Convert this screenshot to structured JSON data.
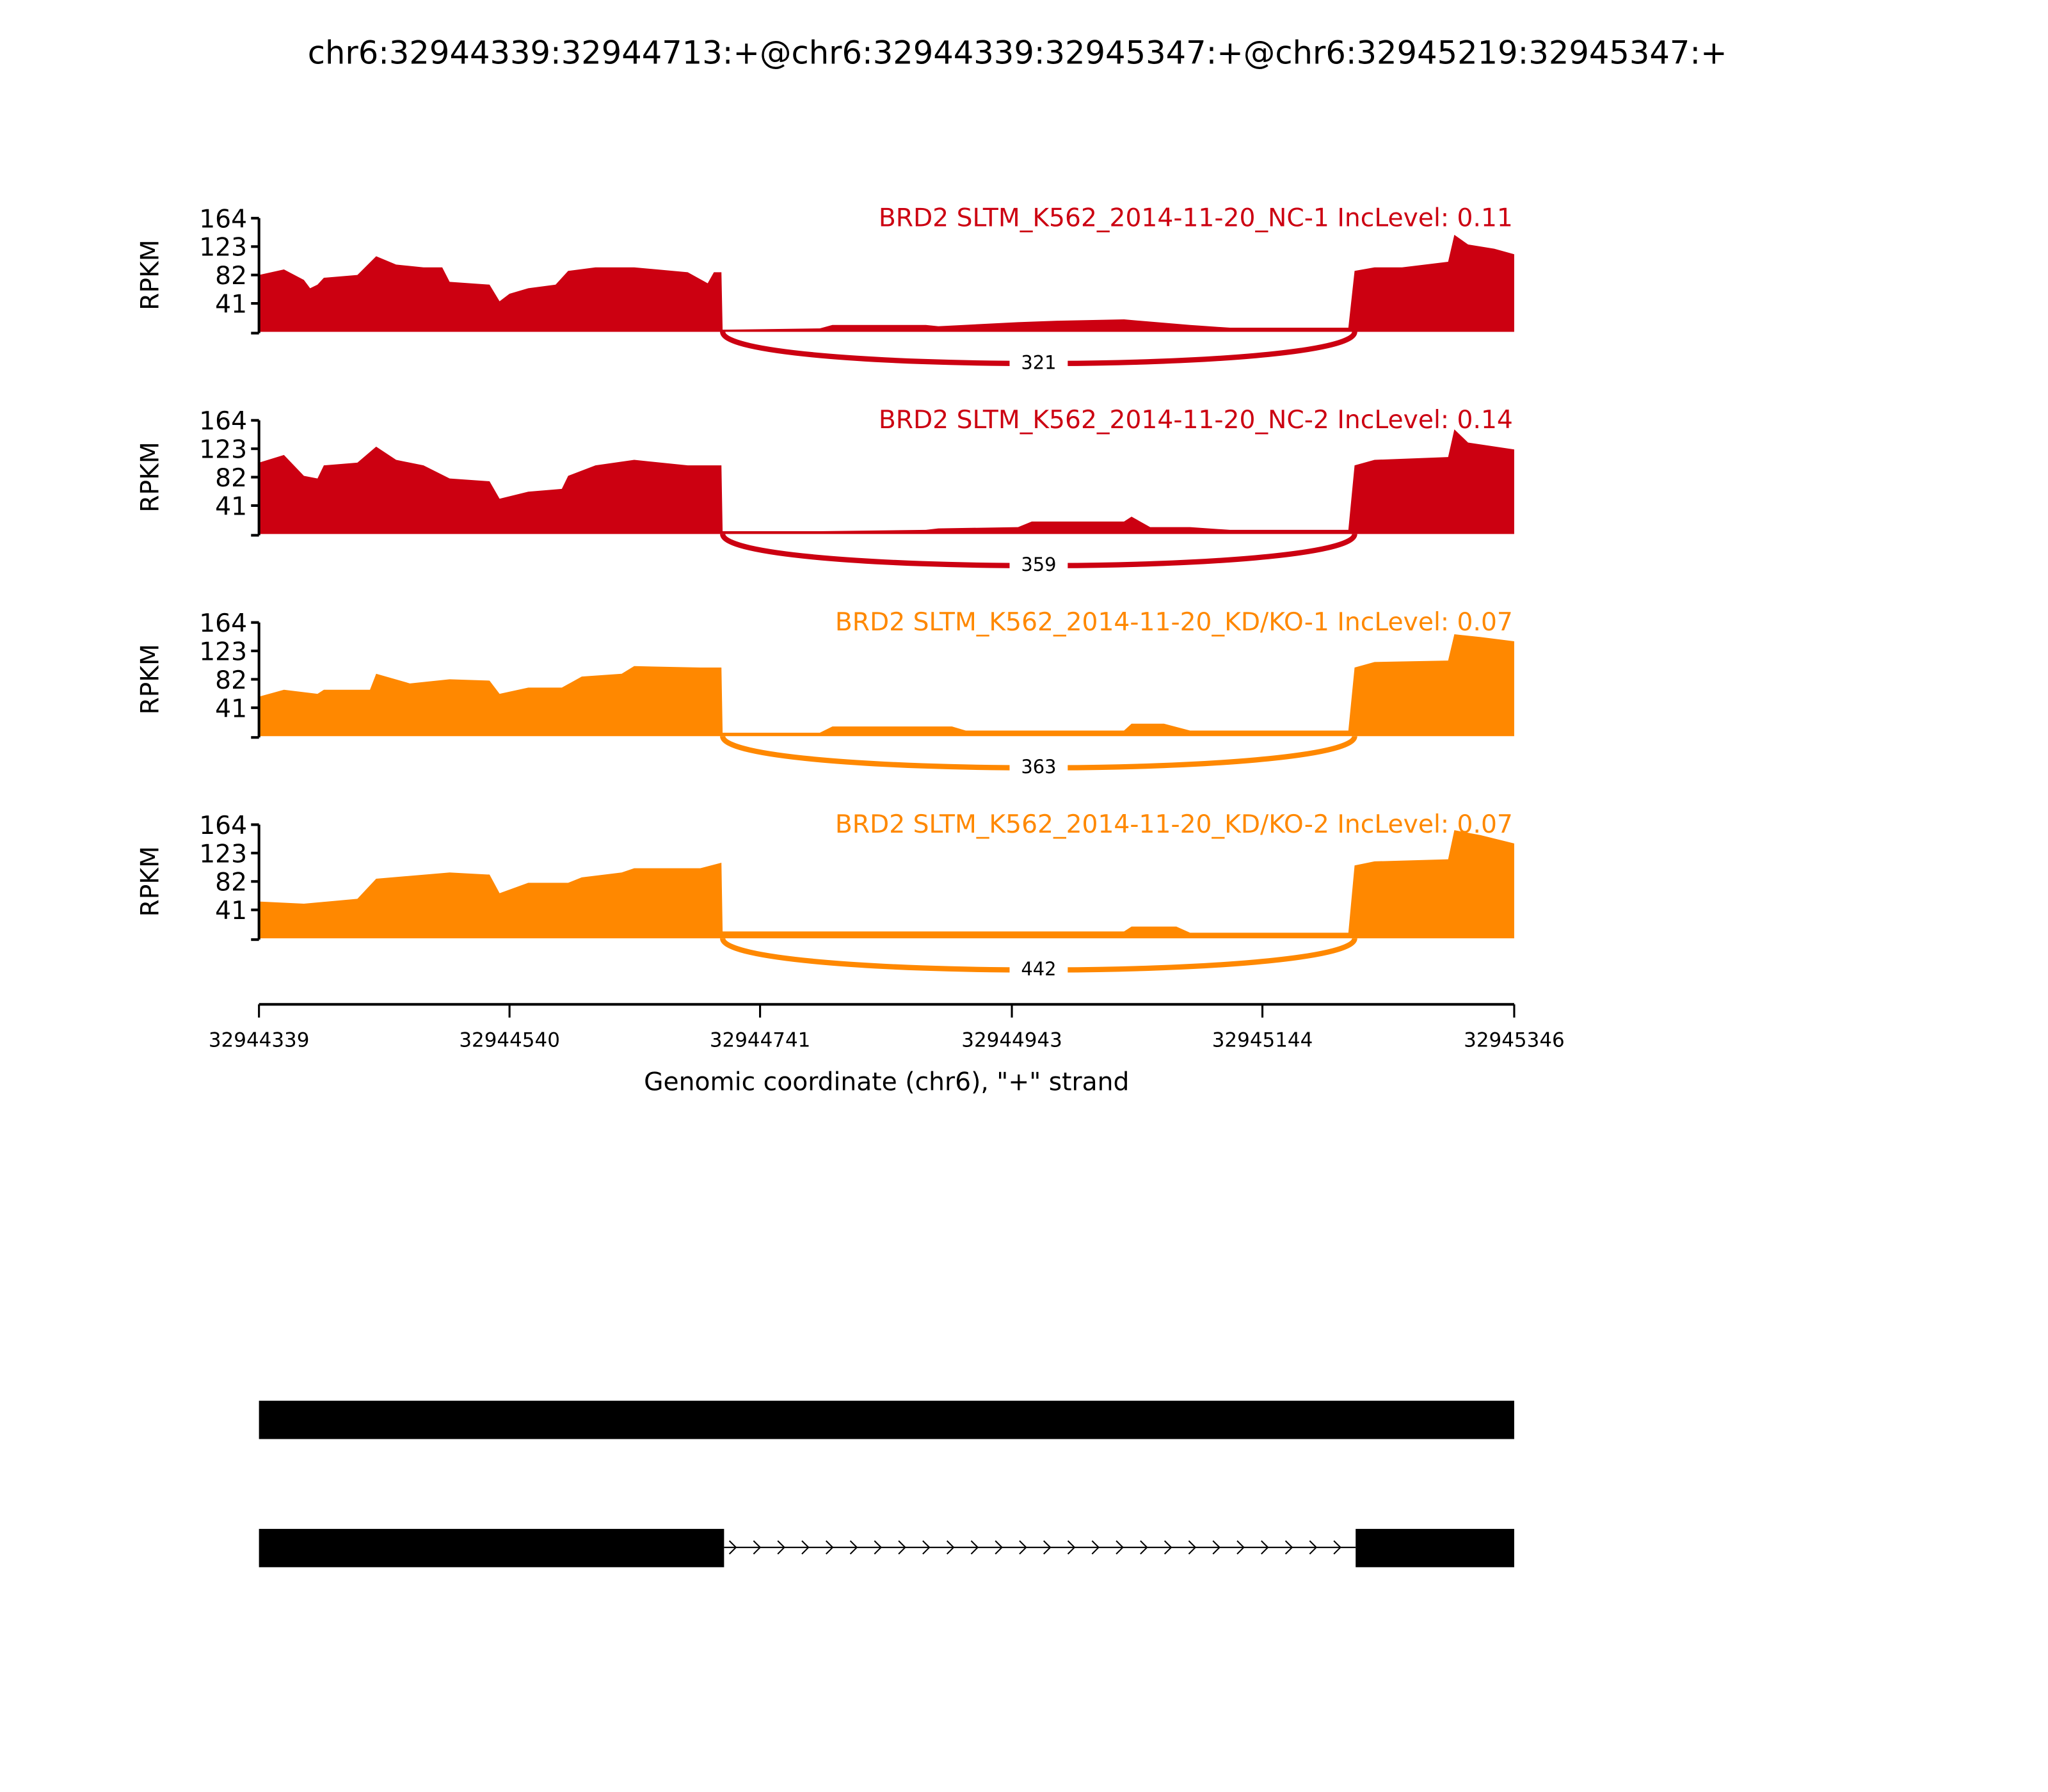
{
  "chart_data": {
    "type": "area",
    "title": "chr6:32944339:32944713:+@chr6:32944339:32945347:+@chr6:32945219:32945347:+",
    "xlabel": "Genomic coordinate (chr6), \"+\" strand",
    "ylabel": "RPKM",
    "x_start": 32944339,
    "x_end": 32945346,
    "xlim": [
      32944339,
      32945346
    ],
    "x_ticks": [
      "32944339",
      "32944540",
      "32944741",
      "32944943",
      "32945144",
      "32945346"
    ],
    "y_ticks": [
      "41",
      "82",
      "123",
      "164"
    ],
    "ylim": [
      0,
      164
    ],
    "x_units": "bp offset from x_start",
    "exon1_end_offset": 372,
    "exon2_start_offset": 879,
    "series": [
      {
        "name": "BRD2 SLTM_K562_2014-11-20_NC-1 IncLevel: 0.11",
        "color": "#CC0011",
        "junction_count": "321",
        "points": [
          [
            0,
            82
          ],
          [
            20,
            90
          ],
          [
            36,
            75
          ],
          [
            41,
            63
          ],
          [
            47,
            68
          ],
          [
            52,
            78
          ],
          [
            79,
            82
          ],
          [
            94,
            109
          ],
          [
            110,
            97
          ],
          [
            132,
            93
          ],
          [
            147,
            93
          ],
          [
            153,
            72
          ],
          [
            185,
            68
          ],
          [
            193,
            44
          ],
          [
            201,
            55
          ],
          [
            216,
            63
          ],
          [
            238,
            68
          ],
          [
            248,
            88
          ],
          [
            270,
            93
          ],
          [
            301,
            93
          ],
          [
            344,
            86
          ],
          [
            360,
            70
          ],
          [
            365,
            86
          ],
          [
            371,
            86
          ],
          [
            372,
            3
          ],
          [
            450,
            5
          ],
          [
            460,
            10
          ],
          [
            535,
            10
          ],
          [
            545,
            8
          ],
          [
            609,
            14
          ],
          [
            641,
            16
          ],
          [
            694,
            18
          ],
          [
            747,
            10
          ],
          [
            779,
            6
          ],
          [
            874,
            6
          ],
          [
            879,
            88
          ],
          [
            895,
            93
          ],
          [
            917,
            93
          ],
          [
            954,
            101
          ],
          [
            959,
            140
          ],
          [
            970,
            126
          ],
          [
            991,
            120
          ],
          [
            1007,
            112
          ]
        ]
      },
      {
        "name": "BRD2 SLTM_K562_2014-11-20_NC-2 IncLevel: 0.14",
        "color": "#CC0011",
        "junction_count": "359",
        "points": [
          [
            0,
            103
          ],
          [
            20,
            114
          ],
          [
            36,
            84
          ],
          [
            47,
            80
          ],
          [
            52,
            99
          ],
          [
            79,
            103
          ],
          [
            94,
            126
          ],
          [
            110,
            107
          ],
          [
            132,
            99
          ],
          [
            153,
            80
          ],
          [
            185,
            76
          ],
          [
            193,
            51
          ],
          [
            216,
            61
          ],
          [
            243,
            65
          ],
          [
            248,
            84
          ],
          [
            270,
            99
          ],
          [
            301,
            107
          ],
          [
            344,
            99
          ],
          [
            365,
            99
          ],
          [
            371,
            99
          ],
          [
            372,
            4
          ],
          [
            450,
            4
          ],
          [
            535,
            6
          ],
          [
            545,
            8
          ],
          [
            609,
            10
          ],
          [
            620,
            18
          ],
          [
            694,
            18
          ],
          [
            700,
            25
          ],
          [
            715,
            10
          ],
          [
            747,
            10
          ],
          [
            779,
            6
          ],
          [
            874,
            6
          ],
          [
            879,
            99
          ],
          [
            895,
            107
          ],
          [
            954,
            111
          ],
          [
            959,
            151
          ],
          [
            970,
            132
          ],
          [
            1007,
            122
          ]
        ]
      },
      {
        "name": "BRD2 SLTM_K562_2014-11-20_KD/KO-1 IncLevel: 0.07",
        "color": "#FF8800",
        "junction_count": "363",
        "points": [
          [
            0,
            57
          ],
          [
            20,
            67
          ],
          [
            47,
            61
          ],
          [
            52,
            67
          ],
          [
            89,
            67
          ],
          [
            94,
            90
          ],
          [
            121,
            76
          ],
          [
            153,
            82
          ],
          [
            185,
            80
          ],
          [
            193,
            61
          ],
          [
            216,
            70
          ],
          [
            243,
            70
          ],
          [
            259,
            86
          ],
          [
            291,
            90
          ],
          [
            301,
            101
          ],
          [
            354,
            99
          ],
          [
            365,
            99
          ],
          [
            371,
            99
          ],
          [
            372,
            5
          ],
          [
            450,
            5
          ],
          [
            460,
            14
          ],
          [
            556,
            14
          ],
          [
            567,
            8
          ],
          [
            694,
            8
          ],
          [
            700,
            18
          ],
          [
            726,
            18
          ],
          [
            747,
            8
          ],
          [
            874,
            8
          ],
          [
            879,
            99
          ],
          [
            895,
            107
          ],
          [
            954,
            109
          ],
          [
            959,
            147
          ],
          [
            980,
            143
          ],
          [
            1007,
            137
          ]
        ]
      },
      {
        "name": "BRD2 SLTM_K562_2014-11-20_KD/KO-2 IncLevel: 0.07",
        "color": "#FF8800",
        "junction_count": "442",
        "points": [
          [
            0,
            53
          ],
          [
            36,
            50
          ],
          [
            79,
            57
          ],
          [
            94,
            86
          ],
          [
            153,
            95
          ],
          [
            185,
            92
          ],
          [
            193,
            65
          ],
          [
            216,
            80
          ],
          [
            248,
            80
          ],
          [
            259,
            88
          ],
          [
            291,
            95
          ],
          [
            301,
            101
          ],
          [
            354,
            101
          ],
          [
            371,
            109
          ],
          [
            372,
            10
          ],
          [
            450,
            10
          ],
          [
            545,
            10
          ],
          [
            694,
            10
          ],
          [
            700,
            17
          ],
          [
            736,
            17
          ],
          [
            747,
            8
          ],
          [
            874,
            8
          ],
          [
            879,
            105
          ],
          [
            895,
            111
          ],
          [
            954,
            114
          ],
          [
            959,
            156
          ],
          [
            980,
            149
          ],
          [
            1007,
            137
          ]
        ]
      }
    ]
  }
}
